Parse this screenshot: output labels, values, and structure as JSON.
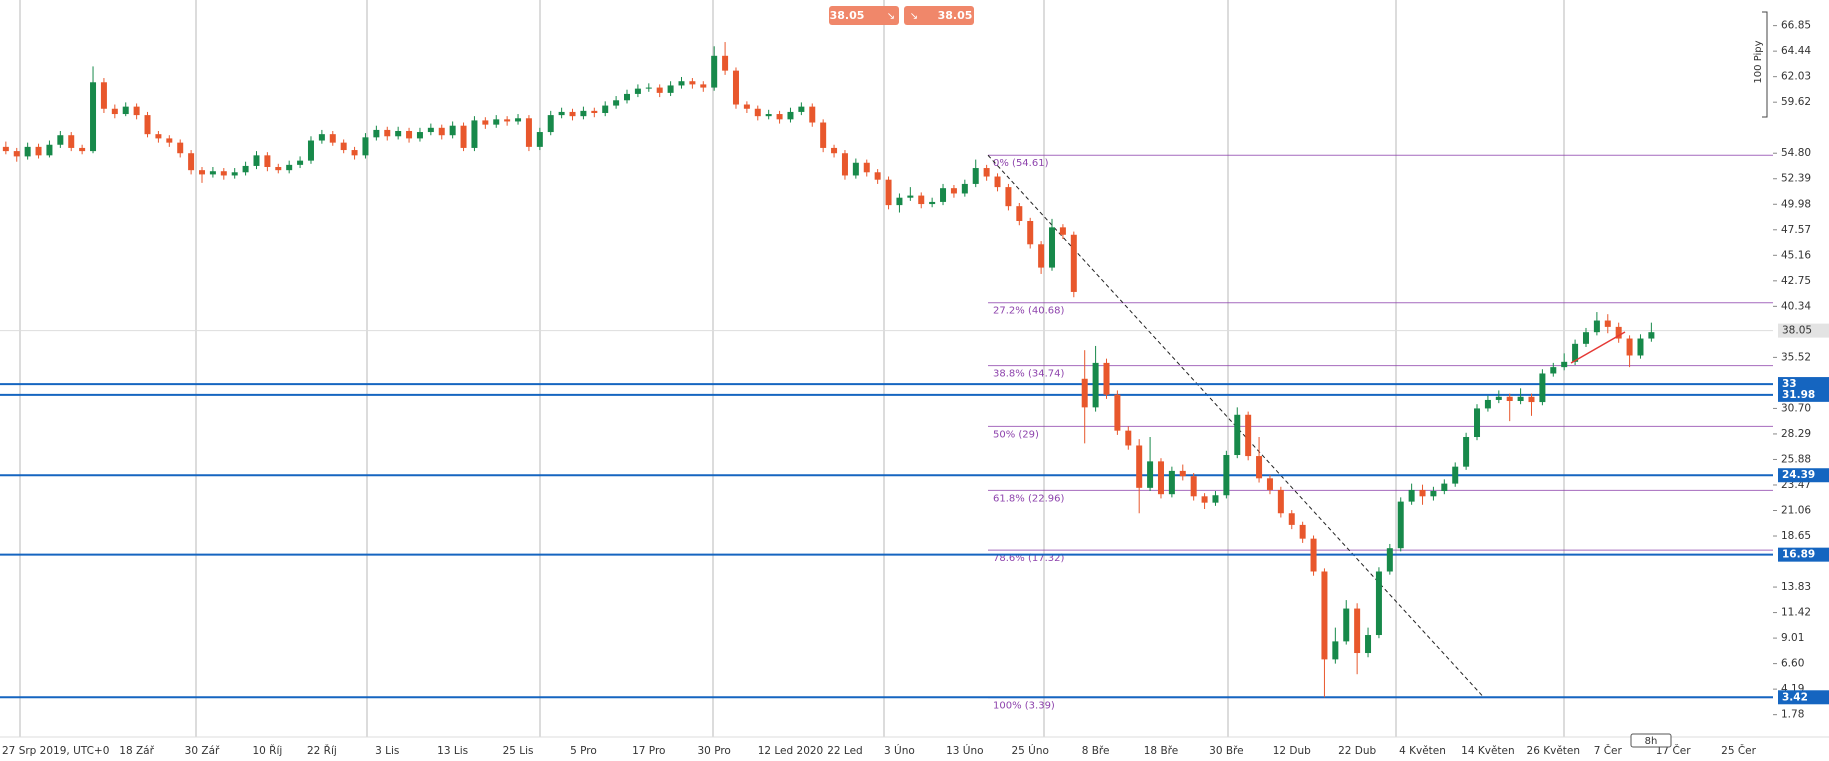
{
  "chart_data": {
    "type": "candlestick",
    "up_color": "#17894a",
    "down_color": "#e8572c",
    "ylim": [
      -0.33,
      69.27
    ],
    "yticks": [
      66.85,
      64.44,
      62.03,
      59.62,
      {
        "value": 54.8,
        "label": "54.80"
      },
      52.39,
      49.98,
      47.57,
      45.16,
      42.75,
      40.34,
      35.52,
      {
        "value": 30.7,
        "label": "30.70"
      },
      28.29,
      25.88,
      23.47,
      21.06,
      18.65,
      13.83,
      11.42,
      9.01,
      {
        "value": 6.6,
        "label": "6.60"
      },
      4.19,
      1.78
    ],
    "levels": [
      33,
      31.98,
      24.39,
      16.89,
      3.42
    ],
    "level_color": "#1565c0",
    "fib_color": "#8e44ad",
    "fib": [
      {
        "value": 54.61,
        "label": "0% (54.61)"
      },
      {
        "value": 40.68,
        "label": "27.2% (40.68)"
      },
      {
        "value": 34.74,
        "label": "38.8% (34.74)"
      },
      {
        "value": 29,
        "label": "50% (29)"
      },
      {
        "value": 22.96,
        "label": "61.8% (22.96)"
      },
      {
        "value": 17.32,
        "label": "78.6% (17.32)"
      },
      {
        "value": 3.39,
        "label": "100% (3.39)"
      }
    ],
    "last_price": 38.05,
    "pips_label": "100 Pipy",
    "timeframe": "8h",
    "categories": [
      "27 Srp 2019, UTC+0",
      null,
      null,
      null,
      null,
      null,
      null,
      null,
      null,
      null,
      null,
      null,
      "18 Zář",
      null,
      null,
      null,
      null,
      null,
      "30 Zář",
      null,
      null,
      null,
      null,
      null,
      "10 Říj",
      null,
      null,
      null,
      null,
      "22 Říj",
      null,
      null,
      null,
      null,
      null,
      "3 Lis",
      null,
      null,
      null,
      null,
      null,
      "13 Lis",
      null,
      null,
      null,
      null,
      null,
      "25 Lis",
      null,
      null,
      null,
      null,
      null,
      "5 Pro",
      null,
      null,
      null,
      null,
      null,
      "17 Pro",
      null,
      null,
      null,
      null,
      null,
      "30 Pro",
      null,
      null,
      null,
      null,
      null,
      null,
      "12 Led 2020",
      null,
      null,
      null,
      null,
      "22 Led",
      null,
      null,
      null,
      null,
      "3 Úno",
      null,
      null,
      null,
      null,
      null,
      "13 Úno",
      null,
      null,
      null,
      null,
      null,
      "25 Úno",
      null,
      null,
      null,
      null,
      null,
      "8 Bře",
      null,
      null,
      null,
      null,
      null,
      "18 Bře",
      null,
      null,
      null,
      null,
      null,
      "30 Bře",
      null,
      null,
      null,
      null,
      null,
      "12 Dub",
      null,
      null,
      null,
      null,
      null,
      "22 Dub",
      null,
      null,
      null,
      null,
      null,
      "4 Květen",
      null,
      null,
      null,
      null,
      null,
      "14 Květen",
      null,
      null,
      null,
      null,
      null,
      "26 Květen",
      null,
      null,
      null,
      null,
      "7 Čer",
      null,
      null,
      null,
      null,
      null,
      "17 Čer",
      null,
      null,
      null,
      null,
      null,
      "25 Čer"
    ],
    "ohlc": [
      [
        55.4,
        55.9,
        54.7,
        55.0
      ],
      [
        55.0,
        55.3,
        54.0,
        54.5
      ],
      [
        54.5,
        55.8,
        54.2,
        55.4
      ],
      [
        55.4,
        55.7,
        54.3,
        54.6
      ],
      [
        54.6,
        56.0,
        54.4,
        55.6
      ],
      [
        55.6,
        56.9,
        55.3,
        56.5
      ],
      [
        56.5,
        56.8,
        55.0,
        55.3
      ],
      [
        55.3,
        55.6,
        54.7,
        55.0
      ],
      [
        55.0,
        63.0,
        54.8,
        61.5
      ],
      [
        61.5,
        61.9,
        58.6,
        59.0
      ],
      [
        59.0,
        59.4,
        58.1,
        58.5
      ],
      [
        58.5,
        59.6,
        58.3,
        59.2
      ],
      [
        59.2,
        59.5,
        58.0,
        58.4
      ],
      [
        58.4,
        58.7,
        56.3,
        56.6
      ],
      [
        56.6,
        56.9,
        55.8,
        56.2
      ],
      [
        56.2,
        56.5,
        55.4,
        55.8
      ],
      [
        55.8,
        56.1,
        54.4,
        54.8
      ],
      [
        54.8,
        55.1,
        52.8,
        53.2
      ],
      [
        53.2,
        53.5,
        52.0,
        52.8
      ],
      [
        52.8,
        53.5,
        52.5,
        53.1
      ],
      [
        53.1,
        53.4,
        52.3,
        52.7
      ],
      [
        52.7,
        53.4,
        52.4,
        53.0
      ],
      [
        53.0,
        54.0,
        52.7,
        53.6
      ],
      [
        53.6,
        55.0,
        53.3,
        54.6
      ],
      [
        54.6,
        54.9,
        53.1,
        53.5
      ],
      [
        53.5,
        53.8,
        52.9,
        53.2
      ],
      [
        53.2,
        54.1,
        52.9,
        53.7
      ],
      [
        53.7,
        54.5,
        53.4,
        54.1
      ],
      [
        54.1,
        56.4,
        53.8,
        56.0
      ],
      [
        56.0,
        57.0,
        55.7,
        56.6
      ],
      [
        56.6,
        56.9,
        55.5,
        55.8
      ],
      [
        55.8,
        56.1,
        54.8,
        55.1
      ],
      [
        55.1,
        55.4,
        54.2,
        54.6
      ],
      [
        54.6,
        56.7,
        54.3,
        56.3
      ],
      [
        56.3,
        57.4,
        56.0,
        57.0
      ],
      [
        57.0,
        57.3,
        56.0,
        56.4
      ],
      [
        56.4,
        57.3,
        56.1,
        56.9
      ],
      [
        56.9,
        57.2,
        55.8,
        56.2
      ],
      [
        56.2,
        57.2,
        55.9,
        56.8
      ],
      [
        56.8,
        57.6,
        56.5,
        57.2
      ],
      [
        57.2,
        57.5,
        56.1,
        56.5
      ],
      [
        56.5,
        57.8,
        56.2,
        57.4
      ],
      [
        57.4,
        57.7,
        55.0,
        55.3
      ],
      [
        55.3,
        58.3,
        55.0,
        57.9
      ],
      [
        57.9,
        58.2,
        57.1,
        57.5
      ],
      [
        57.5,
        58.4,
        57.2,
        58.0
      ],
      [
        58.0,
        58.3,
        57.4,
        57.8
      ],
      [
        57.8,
        58.5,
        57.5,
        58.1
      ],
      [
        58.1,
        58.4,
        55.0,
        55.4
      ],
      [
        55.4,
        57.2,
        55.1,
        56.8
      ],
      [
        56.8,
        58.8,
        56.5,
        58.4
      ],
      [
        58.4,
        59.1,
        58.1,
        58.7
      ],
      [
        58.7,
        59.0,
        57.9,
        58.3
      ],
      [
        58.3,
        59.2,
        58.0,
        58.8
      ],
      [
        58.8,
        59.1,
        58.2,
        58.6
      ],
      [
        58.6,
        59.7,
        58.3,
        59.3
      ],
      [
        59.3,
        60.2,
        59.0,
        59.8
      ],
      [
        59.8,
        60.8,
        59.5,
        60.4
      ],
      [
        60.4,
        61.3,
        60.1,
        60.9
      ],
      [
        60.9,
        61.4,
        60.6,
        61.0
      ],
      [
        61.0,
        61.3,
        60.1,
        60.5
      ],
      [
        60.5,
        61.6,
        60.2,
        61.2
      ],
      [
        61.2,
        62.0,
        60.9,
        61.6
      ],
      [
        61.6,
        61.9,
        60.9,
        61.3
      ],
      [
        61.3,
        61.6,
        60.6,
        61.0
      ],
      [
        61.0,
        64.9,
        60.7,
        64.0
      ],
      [
        64.0,
        65.3,
        62.2,
        62.6
      ],
      [
        62.6,
        62.9,
        59.0,
        59.4
      ],
      [
        59.4,
        59.7,
        58.6,
        59.0
      ],
      [
        59.0,
        59.3,
        57.9,
        58.3
      ],
      [
        58.3,
        58.9,
        58.0,
        58.5
      ],
      [
        58.5,
        58.8,
        57.6,
        58.0
      ],
      [
        58.0,
        59.1,
        57.7,
        58.7
      ],
      [
        58.7,
        59.6,
        58.4,
        59.2
      ],
      [
        59.2,
        59.5,
        57.3,
        57.7
      ],
      [
        57.7,
        58.0,
        54.9,
        55.3
      ],
      [
        55.3,
        55.6,
        54.4,
        54.8
      ],
      [
        54.8,
        55.1,
        52.3,
        52.7
      ],
      [
        52.7,
        54.3,
        52.4,
        53.9
      ],
      [
        53.9,
        54.2,
        52.6,
        53.0
      ],
      [
        53.0,
        53.3,
        51.9,
        52.3
      ],
      [
        52.3,
        52.6,
        49.5,
        49.9
      ],
      [
        49.9,
        51.0,
        49.2,
        50.6
      ],
      [
        50.6,
        51.6,
        50.3,
        50.8
      ],
      [
        50.8,
        51.1,
        49.6,
        50.0
      ],
      [
        50.0,
        50.6,
        49.7,
        50.2
      ],
      [
        50.2,
        51.9,
        49.9,
        51.5
      ],
      [
        51.5,
        51.8,
        50.6,
        51.0
      ],
      [
        51.0,
        52.3,
        50.7,
        51.9
      ],
      [
        51.9,
        54.2,
        51.6,
        53.4
      ],
      [
        53.4,
        53.7,
        52.2,
        52.6
      ],
      [
        52.6,
        52.9,
        51.2,
        51.6
      ],
      [
        51.6,
        51.9,
        49.4,
        49.8
      ],
      [
        49.8,
        50.1,
        48.0,
        48.4
      ],
      [
        48.4,
        48.7,
        45.8,
        46.2
      ],
      [
        46.2,
        46.5,
        43.4,
        44.0
      ],
      [
        44.0,
        48.6,
        43.7,
        47.8
      ],
      [
        47.8,
        48.1,
        46.7,
        47.1
      ],
      [
        47.1,
        47.4,
        41.2,
        41.7
      ],
      [
        33.5,
        36.2,
        27.4,
        30.8
      ],
      [
        30.8,
        36.6,
        30.4,
        35.0
      ],
      [
        35.0,
        35.4,
        31.6,
        32.0
      ],
      [
        32.0,
        32.4,
        28.2,
        28.6
      ],
      [
        28.6,
        29.0,
        26.8,
        27.2
      ],
      [
        27.2,
        27.8,
        20.8,
        23.2
      ],
      [
        23.2,
        28.0,
        22.9,
        25.7
      ],
      [
        25.7,
        26.0,
        22.2,
        22.6
      ],
      [
        22.6,
        25.2,
        22.3,
        24.8
      ],
      [
        24.8,
        25.4,
        23.9,
        24.3
      ],
      [
        24.3,
        24.6,
        22.0,
        22.4
      ],
      [
        22.4,
        22.7,
        21.2,
        21.8
      ],
      [
        21.8,
        22.9,
        21.5,
        22.5
      ],
      [
        22.5,
        26.7,
        22.2,
        26.3
      ],
      [
        26.3,
        30.8,
        26.0,
        30.1
      ],
      [
        30.1,
        30.4,
        25.8,
        26.2
      ],
      [
        26.2,
        28.0,
        23.7,
        24.1
      ],
      [
        24.1,
        24.4,
        22.6,
        23.0
      ],
      [
        23.0,
        23.3,
        20.4,
        20.8
      ],
      [
        20.8,
        21.1,
        19.3,
        19.7
      ],
      [
        19.7,
        20.0,
        18.0,
        18.4
      ],
      [
        18.4,
        18.7,
        14.9,
        15.3
      ],
      [
        15.3,
        15.6,
        3.42,
        7.0
      ],
      [
        7.0,
        10.0,
        6.6,
        8.7
      ],
      [
        8.7,
        12.6,
        8.4,
        11.8
      ],
      [
        11.8,
        12.3,
        5.6,
        7.6
      ],
      [
        7.6,
        10.0,
        7.2,
        9.3
      ],
      [
        9.3,
        15.7,
        9.0,
        15.3
      ],
      [
        15.3,
        17.9,
        15.0,
        17.5
      ],
      [
        17.5,
        22.3,
        17.2,
        21.9
      ],
      [
        21.9,
        23.6,
        21.6,
        23.0
      ],
      [
        23.0,
        23.5,
        21.6,
        22.4
      ],
      [
        22.4,
        23.3,
        22.0,
        22.9
      ],
      [
        22.9,
        24.0,
        22.6,
        23.6
      ],
      [
        23.6,
        25.6,
        23.3,
        25.2
      ],
      [
        25.2,
        28.4,
        24.9,
        28.0
      ],
      [
        28.0,
        31.1,
        27.7,
        30.7
      ],
      [
        30.7,
        31.9,
        30.4,
        31.5
      ],
      [
        31.5,
        32.4,
        31.2,
        31.8
      ],
      [
        31.8,
        32.1,
        29.5,
        31.4
      ],
      [
        31.4,
        32.6,
        31.1,
        31.8
      ],
      [
        31.8,
        32.1,
        30.0,
        31.3
      ],
      [
        31.3,
        34.4,
        31.0,
        34.0
      ],
      [
        34.0,
        35.0,
        33.7,
        34.6
      ],
      [
        34.6,
        35.9,
        34.3,
        35.1
      ],
      [
        35.1,
        37.2,
        34.8,
        36.8
      ],
      [
        36.8,
        38.3,
        36.5,
        37.9
      ],
      [
        37.9,
        39.8,
        37.6,
        39.0
      ],
      [
        39.0,
        39.6,
        37.8,
        38.4
      ],
      [
        38.4,
        38.8,
        36.9,
        37.3
      ],
      [
        37.3,
        37.6,
        34.6,
        35.7
      ],
      [
        35.7,
        37.7,
        35.4,
        37.3
      ],
      [
        37.3,
        38.8,
        37.0,
        37.9
      ],
      null,
      null,
      null,
      null,
      null,
      null,
      null,
      null
    ]
  }
}
